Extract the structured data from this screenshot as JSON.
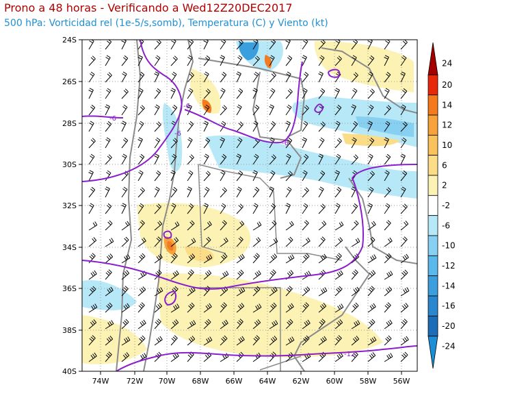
{
  "header": {
    "title": "Prono a 48 horas - Verificando a Wed12Z20DEC2017",
    "subtitle": "500 hPa: Vorticidad rel (1e-5/s,somb), Temperatura (C) y Viento (kt)"
  },
  "map": {
    "lon_labels": [
      "74W",
      "72W",
      "70W",
      "68W",
      "66W",
      "64W",
      "62W",
      "60W",
      "58W",
      "56W"
    ],
    "lat_labels": [
      "24S",
      "26S",
      "28S",
      "30S",
      "32S",
      "34S",
      "36S",
      "38S",
      "40S"
    ],
    "contour_labels": [
      "-6",
      "-6",
      "-6",
      "-6",
      "-12"
    ]
  },
  "colorbar": {
    "labels": [
      "24",
      "20",
      "14",
      "12",
      "10",
      "6",
      "2",
      "-2",
      "-6",
      "-10",
      "-12",
      "-14",
      "-16",
      "-20",
      "-24"
    ],
    "colors": [
      "#a50000",
      "#e8280a",
      "#f57a1e",
      "#f7a23a",
      "#f9c25c",
      "#fbdd88",
      "#fcf2b4",
      "#ffffff",
      "#b7e8f7",
      "#87d0f2",
      "#5ab8ea",
      "#3c9fdd",
      "#2a86cf",
      "#1b6db7",
      "#1a8fd8"
    ]
  }
}
